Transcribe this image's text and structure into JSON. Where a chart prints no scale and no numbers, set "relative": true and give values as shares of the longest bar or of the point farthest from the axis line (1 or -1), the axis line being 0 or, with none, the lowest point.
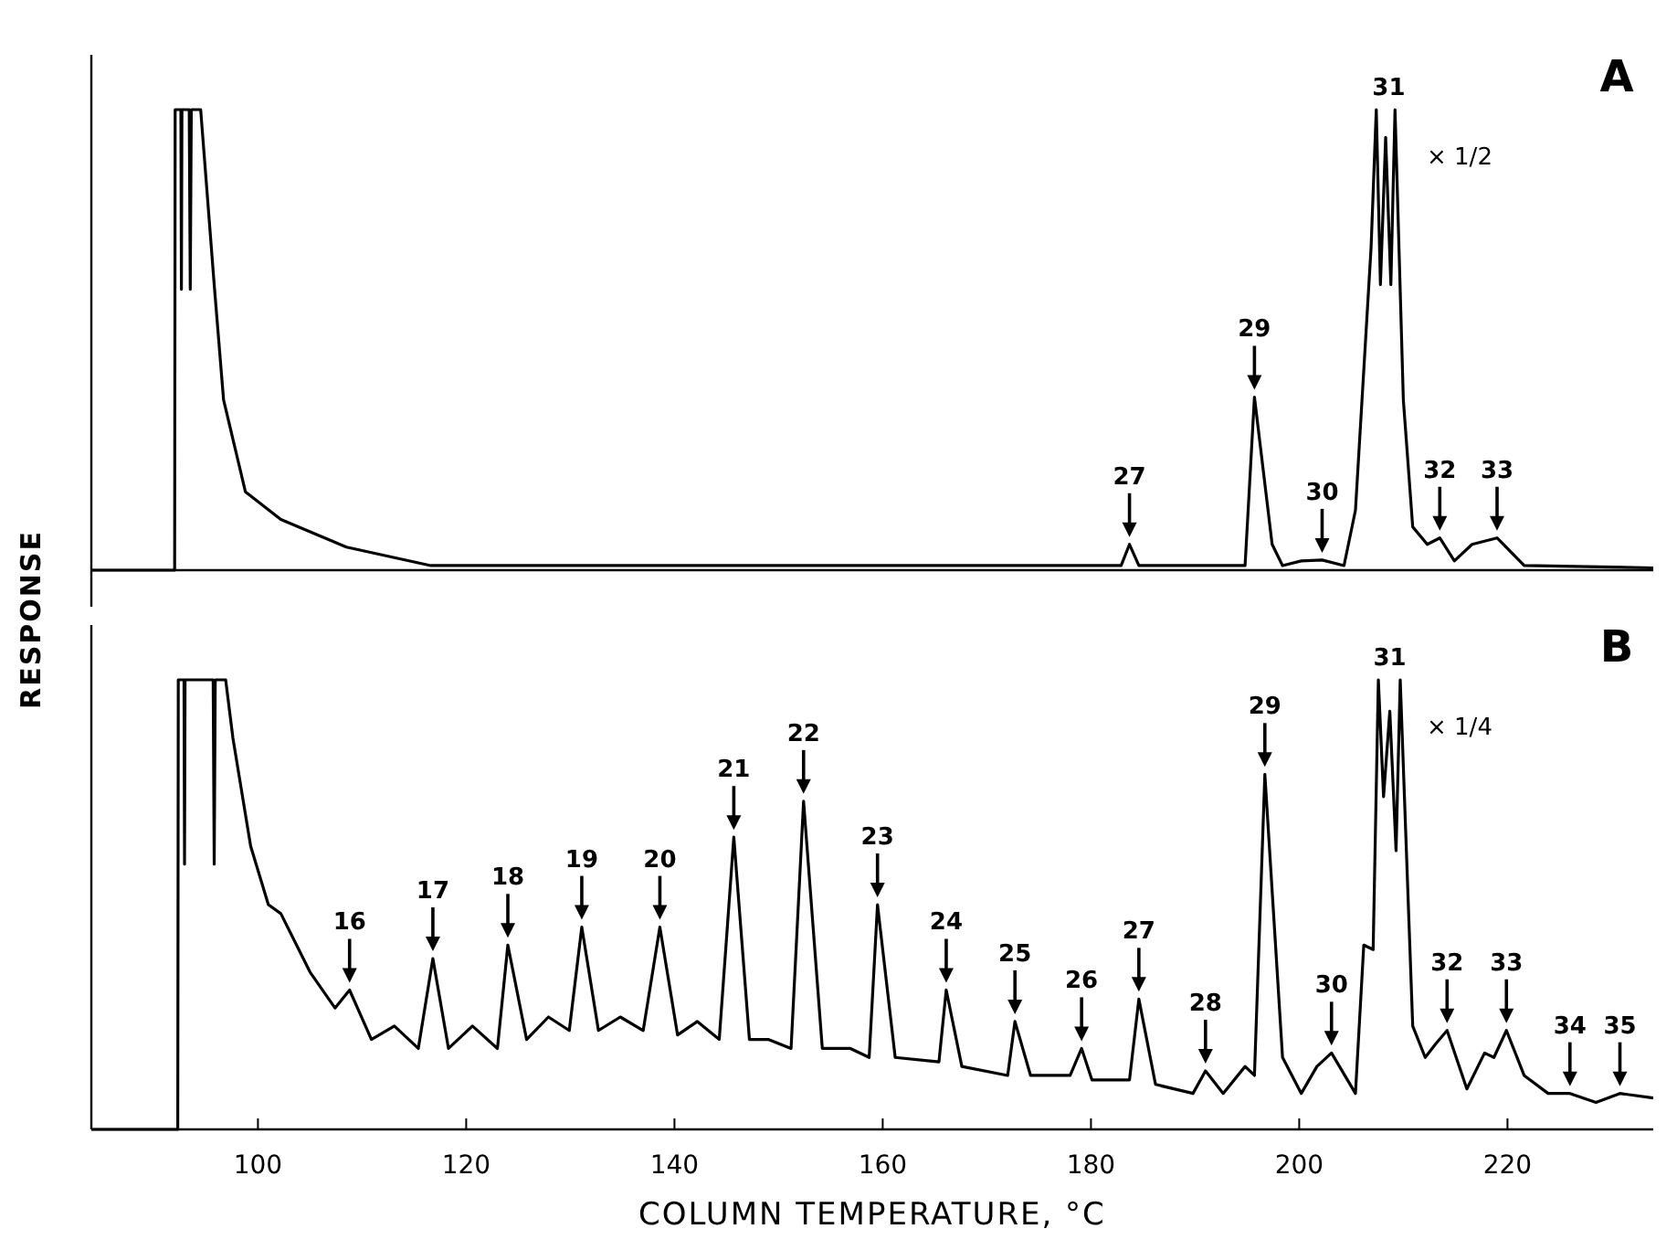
{
  "chart_data": [
    {
      "type": "line",
      "relative": true,
      "color": "#000000",
      "xlim": [
        84,
        234
      ],
      "tick_labels": false,
      "x": [
        84,
        92.0,
        92.05,
        92.6,
        92.65,
        92.7,
        93.4,
        93.5,
        93.6,
        94.5,
        95.8,
        96.7,
        98.8,
        102.2,
        108.5,
        116.6,
        130,
        150,
        170,
        182.9,
        183.7,
        184.6,
        194,
        194.8,
        195.7,
        197.4,
        198.4,
        200.2,
        202.2,
        204.3,
        205.4,
        206.9,
        207.4,
        207.8,
        208.3,
        208.8,
        209.2,
        210.0,
        210.9,
        212.3,
        213.5,
        214.9,
        216.6,
        219,
        221.6,
        234
      ],
      "values": [
        0,
        0,
        1,
        1,
        0.61,
        1,
        1,
        0.61,
        1,
        1,
        0.62,
        0.37,
        0.17,
        0.11,
        0.05,
        0.01,
        0.01,
        0.01,
        0.01,
        0.01,
        0.056,
        0.01,
        0.01,
        0.01,
        0.376,
        0.056,
        0.01,
        0.02,
        0.022,
        0.01,
        0.13,
        0.7,
        1,
        0.62,
        0.94,
        0.62,
        1,
        0.37,
        0.094,
        0.056,
        0.07,
        0.02,
        0.056,
        0.07,
        0.01,
        0.005
      ],
      "annotations": [
        {
          "text": "27",
          "x": 183.7,
          "y": 0.056
        },
        {
          "text": "29",
          "x": 195.7,
          "y": 0.376
        },
        {
          "text": "30",
          "x": 202.2,
          "y": 0.022
        },
        {
          "text": "31",
          "x": 208.6,
          "y": 1
        },
        {
          "text": "32",
          "x": 213.5,
          "y": 0.07
        },
        {
          "text": "33",
          "x": 219,
          "y": 0.07
        },
        "A",
        "× 1/2"
      ]
    },
    {
      "type": "line",
      "relative": true,
      "color": "#000000",
      "xlim": [
        84,
        234
      ],
      "xticks": [
        100,
        120,
        140,
        160,
        180,
        200,
        220
      ],
      "tick_labels": "x",
      "xlabel": "COLUMN TEMPERATURE, °C",
      "ylabel": "RESPONSE",
      "x": [
        84,
        92.3,
        92.35,
        92.9,
        92.95,
        93.0,
        95.7,
        95.8,
        95.9,
        96.9,
        97.6,
        99.3,
        101.0,
        102.2,
        105.0,
        107.4,
        108.8,
        110.9,
        113.1,
        115.4,
        116.8,
        118.3,
        120.6,
        123.0,
        124.0,
        125.8,
        127.9,
        129.9,
        131.1,
        132.7,
        134.8,
        137.0,
        138.6,
        140.3,
        142.2,
        144.3,
        145.7,
        147.2,
        149.0,
        151.2,
        152.4,
        154.2,
        156.9,
        158.7,
        159.5,
        161.2,
        165.4,
        166.1,
        167.6,
        172.0,
        172.7,
        174.2,
        178.0,
        179.1,
        180.1,
        183.7,
        184.6,
        186.2,
        189.8,
        191.0,
        192.7,
        194.8,
        195.7,
        196.7,
        198.4,
        200.2,
        201.7,
        203.1,
        205.4,
        206.2,
        207.1,
        207.6,
        208.1,
        208.7,
        209.3,
        209.7,
        210.9,
        212.1,
        213.1,
        214.2,
        216.1,
        217.8,
        218.7,
        219.9,
        221.6,
        223.9,
        226.0,
        228.5,
        230.8,
        234
      ],
      "values": [
        0,
        0,
        1,
        1,
        0.59,
        1,
        1,
        0.59,
        1,
        1,
        0.87,
        0.63,
        0.5,
        0.48,
        0.35,
        0.27,
        0.31,
        0.2,
        0.23,
        0.18,
        0.38,
        0.18,
        0.23,
        0.18,
        0.41,
        0.2,
        0.25,
        0.22,
        0.45,
        0.22,
        0.25,
        0.22,
        0.45,
        0.21,
        0.24,
        0.2,
        0.65,
        0.2,
        0.2,
        0.18,
        0.73,
        0.18,
        0.18,
        0.16,
        0.5,
        0.16,
        0.15,
        0.31,
        0.14,
        0.12,
        0.24,
        0.12,
        0.12,
        0.18,
        0.11,
        0.11,
        0.29,
        0.1,
        0.08,
        0.13,
        0.08,
        0.14,
        0.12,
        0.79,
        0.16,
        0.08,
        0.14,
        0.17,
        0.08,
        0.41,
        0.4,
        1,
        0.74,
        0.93,
        0.62,
        1,
        0.23,
        0.16,
        0.19,
        0.22,
        0.09,
        0.17,
        0.16,
        0.22,
        0.12,
        0.08,
        0.08,
        0.06,
        0.08,
        0.07
      ],
      "annotations": [
        {
          "text": "16",
          "x": 108.8,
          "y": 0.31
        },
        {
          "text": "17",
          "x": 116.8,
          "y": 0.38
        },
        {
          "text": "18",
          "x": 124,
          "y": 0.41
        },
        {
          "text": "19",
          "x": 131.1,
          "y": 0.45
        },
        {
          "text": "20",
          "x": 138.6,
          "y": 0.45
        },
        {
          "text": "21",
          "x": 145.7,
          "y": 0.65
        },
        {
          "text": "22",
          "x": 152.4,
          "y": 0.73
        },
        {
          "text": "23",
          "x": 159.5,
          "y": 0.5
        },
        {
          "text": "24",
          "x": 166.1,
          "y": 0.31
        },
        {
          "text": "25",
          "x": 172.7,
          "y": 0.24
        },
        {
          "text": "26",
          "x": 179.1,
          "y": 0.18
        },
        {
          "text": "27",
          "x": 184.6,
          "y": 0.29
        },
        {
          "text": "28",
          "x": 191,
          "y": 0.13
        },
        {
          "text": "29",
          "x": 196.7,
          "y": 0.79
        },
        {
          "text": "30",
          "x": 203.1,
          "y": 0.17
        },
        {
          "text": "31",
          "x": 208.7,
          "y": 1
        },
        {
          "text": "32",
          "x": 214.2,
          "y": 0.22
        },
        {
          "text": "33",
          "x": 219.9,
          "y": 0.22
        },
        {
          "text": "34",
          "x": 226,
          "y": 0.08
        },
        {
          "text": "35",
          "x": 230.8,
          "y": 0.08
        },
        "B",
        "× 1/4"
      ]
    }
  ]
}
